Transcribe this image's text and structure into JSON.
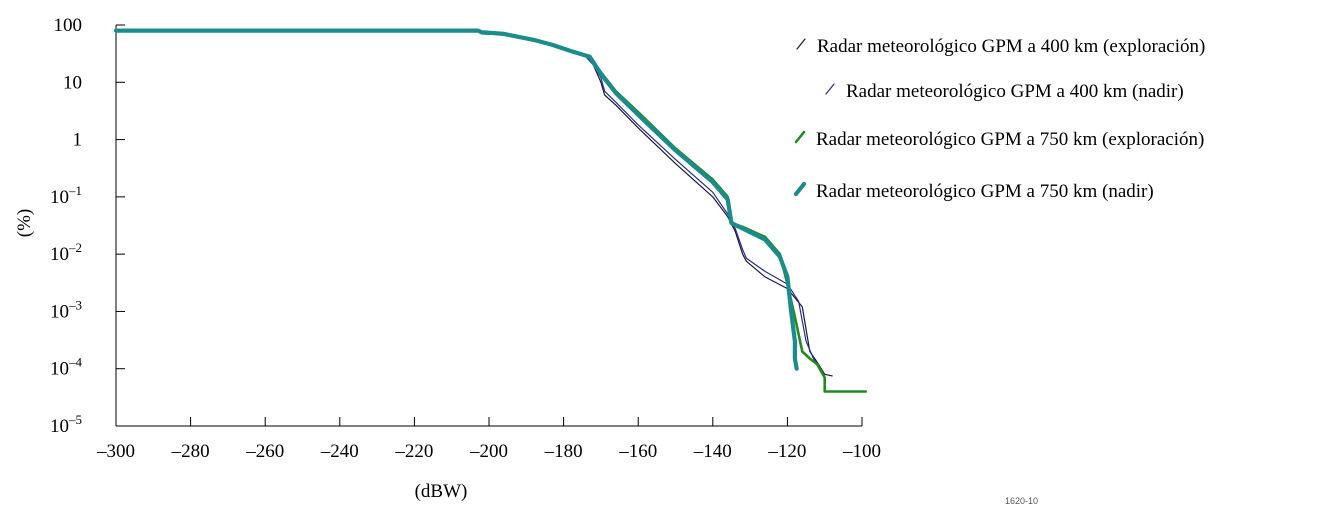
{
  "chart_data": {
    "type": "line",
    "xlabel": "(dBW)",
    "ylabel": "(%)",
    "x_ticks": [
      "–300",
      "–280",
      "–260",
      "–240",
      "–220",
      "–200",
      "–180",
      "–160",
      "–140",
      "–120",
      "–100"
    ],
    "xlim": [
      -300,
      -100
    ],
    "y_scale": "log",
    "ylim": [
      1e-05,
      100
    ],
    "y_ticks": [
      {
        "value": 100,
        "base": "100",
        "exp": ""
      },
      {
        "value": 10,
        "base": "10",
        "exp": ""
      },
      {
        "value": 1,
        "base": "1",
        "exp": ""
      },
      {
        "value": 0.1,
        "base": "10",
        "exp": "–1"
      },
      {
        "value": 0.01,
        "base": "10",
        "exp": "–2"
      },
      {
        "value": 0.001,
        "base": "10",
        "exp": "–3"
      },
      {
        "value": 0.0001,
        "base": "10",
        "exp": "–4"
      },
      {
        "value": 1e-05,
        "base": "10",
        "exp": "–5"
      }
    ],
    "grid": false,
    "legend_position": "right",
    "series": [
      {
        "name": "Radar meteorológico GPM a 400 km (exploración)",
        "color": "#1a1a33",
        "width": 1.2,
        "points": [
          [
            -300,
            80
          ],
          [
            -203,
            80
          ],
          [
            -202,
            70
          ],
          [
            -196,
            68
          ],
          [
            -188,
            55
          ],
          [
            -183,
            45
          ],
          [
            -178,
            35
          ],
          [
            -174,
            28
          ],
          [
            -172,
            20
          ],
          [
            -170,
            10
          ],
          [
            -169,
            6
          ],
          [
            -166,
            4
          ],
          [
            -160,
            1.6
          ],
          [
            -150,
            0.38
          ],
          [
            -140,
            0.1
          ],
          [
            -136,
            0.045
          ],
          [
            -134,
            0.025
          ],
          [
            -132,
            0.01
          ],
          [
            -131,
            0.0075
          ],
          [
            -126,
            0.004
          ],
          [
            -120,
            0.0025
          ],
          [
            -116,
            0.0012
          ],
          [
            -114,
            0.0002
          ],
          [
            -112,
            0.00013
          ],
          [
            -110,
            8e-05
          ],
          [
            -108,
            7.5e-05
          ]
        ]
      },
      {
        "name": "Radar meteorológico GPM a 400 km (nadir)",
        "color": "#2a2a9a",
        "width": 1.2,
        "points": [
          [
            -300,
            80
          ],
          [
            -203,
            80
          ],
          [
            -202,
            70
          ],
          [
            -196,
            68
          ],
          [
            -188,
            55
          ],
          [
            -183,
            45
          ],
          [
            -178,
            35
          ],
          [
            -174,
            28
          ],
          [
            -172,
            20
          ],
          [
            -170,
            12
          ],
          [
            -169,
            7
          ],
          [
            -166,
            4.5
          ],
          [
            -160,
            1.8
          ],
          [
            -150,
            0.45
          ],
          [
            -140,
            0.12
          ],
          [
            -136,
            0.05
          ],
          [
            -134,
            0.028
          ],
          [
            -132,
            0.012
          ],
          [
            -131,
            0.0085
          ],
          [
            -126,
            0.005
          ],
          [
            -120,
            0.003
          ],
          [
            -117,
            0.0015
          ],
          [
            -115,
            0.0003
          ],
          [
            -113,
            0.00015
          ],
          [
            -111,
            0.0001
          ]
        ]
      },
      {
        "name": "Radar meteorológico GPM a 750 km (exploración)",
        "color": "#1f8a1f",
        "width": 2.6,
        "points": [
          [
            -300,
            80
          ],
          [
            -203,
            80
          ],
          [
            -202,
            75
          ],
          [
            -196,
            70
          ],
          [
            -188,
            55
          ],
          [
            -183,
            45
          ],
          [
            -178,
            35
          ],
          [
            -173,
            28
          ],
          [
            -170,
            15
          ],
          [
            -166,
            7
          ],
          [
            -160,
            3
          ],
          [
            -150,
            0.7
          ],
          [
            -140,
            0.2
          ],
          [
            -136,
            0.1
          ],
          [
            -135,
            0.035
          ],
          [
            -132,
            0.03
          ],
          [
            -126,
            0.02
          ],
          [
            -122,
            0.01
          ],
          [
            -120,
            0.003
          ],
          [
            -118,
            0.0008
          ],
          [
            -116,
            0.0002
          ],
          [
            -114,
            0.00015
          ],
          [
            -112,
            0.00012
          ],
          [
            -110,
            7e-05
          ],
          [
            -110,
            4e-05
          ],
          [
            -99,
            4e-05
          ]
        ]
      },
      {
        "name": "Radar meteorológico GPM a 750 km (nadir)",
        "color": "#1a8c8c",
        "width": 4.2,
        "points": [
          [
            -300,
            80
          ],
          [
            -203,
            80
          ],
          [
            -202,
            75
          ],
          [
            -196,
            70
          ],
          [
            -188,
            55
          ],
          [
            -183,
            45
          ],
          [
            -178,
            35
          ],
          [
            -173,
            28
          ],
          [
            -170,
            14
          ],
          [
            -166,
            6.5
          ],
          [
            -160,
            2.7
          ],
          [
            -150,
            0.65
          ],
          [
            -140,
            0.18
          ],
          [
            -136,
            0.09
          ],
          [
            -135,
            0.035
          ],
          [
            -132,
            0.028
          ],
          [
            -126,
            0.018
          ],
          [
            -122,
            0.009
          ],
          [
            -120,
            0.004
          ],
          [
            -119,
            0.001
          ],
          [
            -118,
            0.0003
          ],
          [
            -118,
            0.00015
          ],
          [
            -117.5,
            0.0001
          ]
        ]
      }
    ],
    "figure_id": "1620-10"
  }
}
